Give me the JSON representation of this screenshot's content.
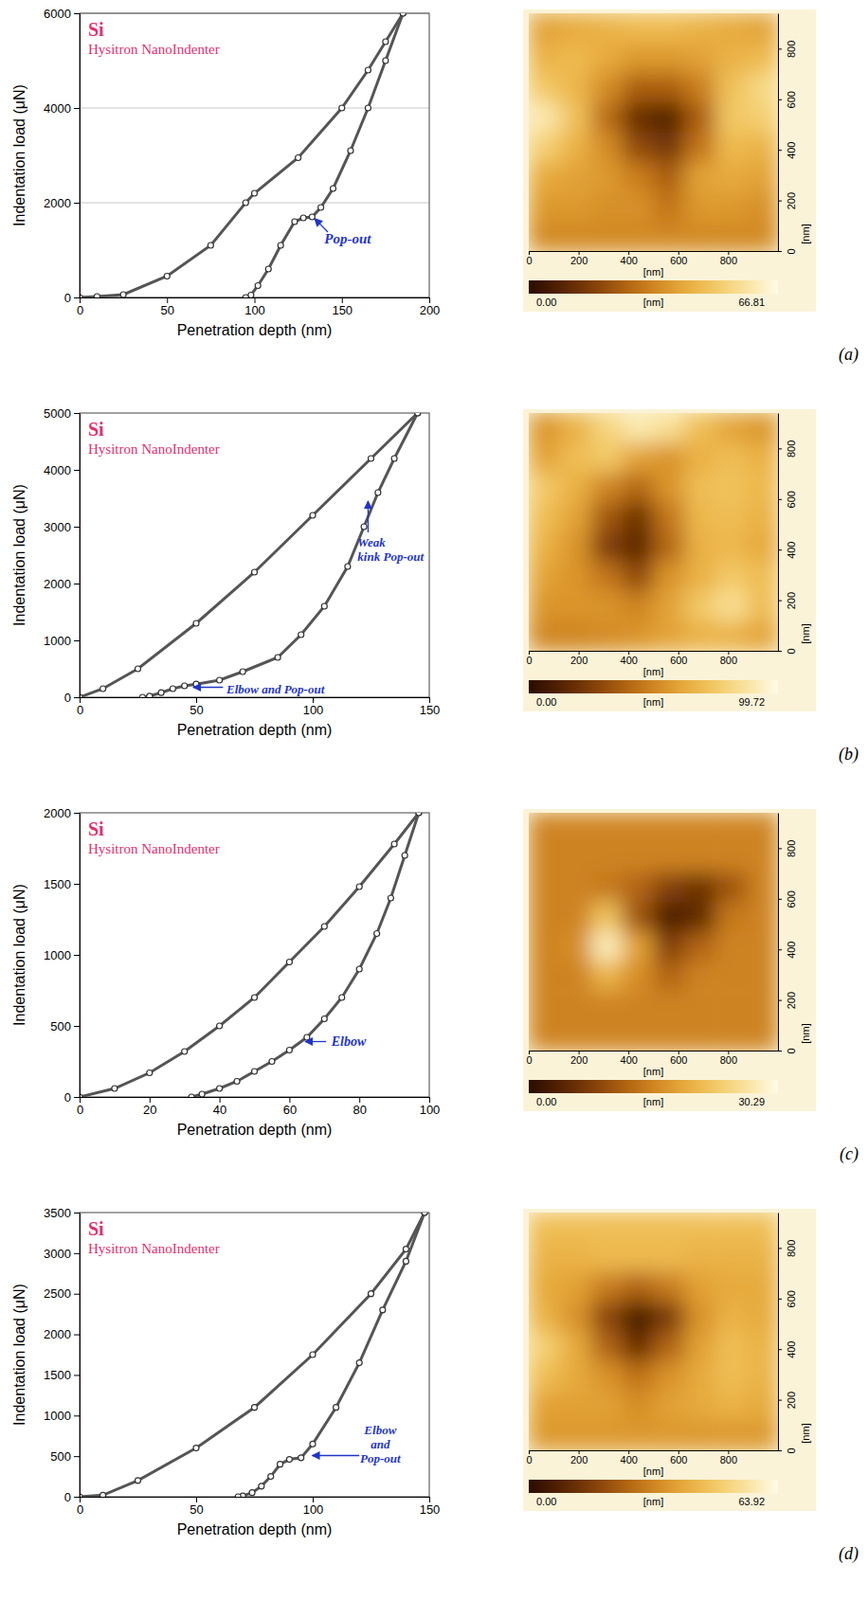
{
  "chart_data": [
    {
      "type": "scatter",
      "title": "Si",
      "subtitle": "Hysitron NanoIndenter",
      "x_label": "Penetration depth (nm)",
      "y_label": "Indentation load (μN)",
      "xlim": [
        0,
        200
      ],
      "xticks": [
        0,
        50,
        100,
        150,
        200
      ],
      "ylim": [
        0,
        6000
      ],
      "yticks": [
        0,
        2000,
        4000,
        6000
      ],
      "grid": true,
      "series": [
        {
          "x": [
            0,
            10,
            25,
            50,
            75,
            95,
            100,
            125,
            150,
            165,
            175,
            185
          ],
          "values": [
            0,
            20,
            60,
            450,
            1100,
            2000,
            2200,
            2950,
            4000,
            4800,
            5400,
            6000
          ],
          "marker": "circle",
          "line_style": "solid"
        },
        {
          "x": [
            185,
            175,
            165,
            155,
            145,
            138,
            133,
            128,
            123,
            115,
            108,
            102,
            98,
            95
          ],
          "values": [
            6000,
            5000,
            4000,
            3100,
            2300,
            1900,
            1700,
            1680,
            1600,
            1100,
            600,
            250,
            50,
            0
          ],
          "marker": "circle",
          "line_style": "solid"
        }
      ],
      "annotations": [
        {
          "text": [
            "Pop-out"
          ]
        }
      ],
      "panel_label": "(a)"
    },
    {
      "type": "heatmap",
      "x_label": "[nm]",
      "y_label": "[nm]",
      "xlim": [
        0,
        1000
      ],
      "xticks": [
        0,
        200,
        400,
        600,
        800
      ],
      "ylim": [
        0,
        940
      ],
      "yticks": [
        0,
        200,
        400,
        600,
        800
      ],
      "cells": [
        [
          40,
          42,
          44,
          46,
          46,
          44,
          42,
          40
        ],
        [
          44,
          46,
          42,
          38,
          38,
          40,
          44,
          46
        ],
        [
          50,
          45,
          35,
          25,
          25,
          32,
          48,
          55
        ],
        [
          60,
          48,
          28,
          12,
          8,
          25,
          50,
          52
        ],
        [
          52,
          44,
          35,
          20,
          15,
          30,
          46,
          44
        ],
        [
          42,
          40,
          38,
          32,
          25,
          40,
          42,
          40
        ],
        [
          38,
          38,
          36,
          36,
          30,
          38,
          38,
          36
        ],
        [
          34,
          34,
          34,
          34,
          34,
          34,
          34,
          34
        ]
      ],
      "colorbar": {
        "label": "[nm]",
        "range": [
          0,
          66.81
        ],
        "ticks": [
          {
            "value": 0,
            "label": "0.00"
          },
          66.81
        ]
      }
    },
    {
      "type": "scatter",
      "title": "Si",
      "subtitle": "Hysitron NanoIndenter",
      "x_label": "Penetration depth (nm)",
      "y_label": "Indentation load (μN)",
      "xlim": [
        0,
        150
      ],
      "xticks": [
        0,
        50,
        100,
        150
      ],
      "ylim": [
        0,
        5000
      ],
      "yticks": [
        0,
        1000,
        2000,
        3000,
        4000,
        5000
      ],
      "grid": false,
      "series": [
        {
          "x": [
            0,
            10,
            25,
            50,
            75,
            100,
            125,
            145
          ],
          "values": [
            0,
            150,
            500,
            1300,
            2200,
            3200,
            4200,
            5000
          ],
          "marker": "circle",
          "line_style": "solid"
        },
        {
          "x": [
            145,
            135,
            128,
            122,
            115,
            105,
            95,
            85,
            70,
            60,
            50,
            45,
            40,
            35,
            30,
            27
          ],
          "values": [
            5000,
            4200,
            3600,
            3000,
            2300,
            1600,
            1100,
            700,
            450,
            300,
            230,
            200,
            150,
            80,
            20,
            0
          ],
          "marker": "circle",
          "line_style": "solid"
        }
      ],
      "annotations": [
        {
          "text": [
            "Weak",
            "kink Pop-out"
          ]
        },
        {
          "text": [
            "Elbow and Pop-out"
          ]
        }
      ],
      "panel_label": "(b)"
    },
    {
      "type": "heatmap",
      "x_label": "[nm]",
      "y_label": "[nm]",
      "xlim": [
        0,
        1000
      ],
      "xticks": [
        0,
        200,
        400,
        600,
        800
      ],
      "ylim": [
        0,
        940
      ],
      "yticks": [
        0,
        200,
        400,
        600,
        800
      ],
      "cells": [
        [
          55,
          65,
          80,
          90,
          85,
          70,
          60,
          55
        ],
        [
          60,
          70,
          75,
          60,
          55,
          65,
          70,
          65
        ],
        [
          75,
          65,
          50,
          40,
          55,
          70,
          72,
          68
        ],
        [
          70,
          60,
          35,
          20,
          45,
          68,
          70,
          65
        ],
        [
          65,
          55,
          25,
          15,
          40,
          65,
          68,
          62
        ],
        [
          60,
          55,
          45,
          30,
          55,
          65,
          75,
          70
        ],
        [
          55,
          55,
          55,
          50,
          60,
          75,
          85,
          70
        ],
        [
          50,
          50,
          52,
          55,
          60,
          65,
          65,
          60
        ]
      ],
      "colorbar": {
        "label": "[nm]",
        "range": [
          0,
          99.72
        ],
        "ticks": [
          {
            "value": 0,
            "label": "0.00"
          },
          99.72
        ]
      }
    },
    {
      "type": "scatter",
      "title": "Si",
      "subtitle": "Hysitron NanoIndenter",
      "x_label": "Penetration depth (nm)",
      "y_label": "Indentation load (μN)",
      "xlim": [
        0,
        100
      ],
      "xticks": [
        0,
        20,
        40,
        60,
        80,
        100
      ],
      "ylim": [
        0,
        2000
      ],
      "yticks": [
        0,
        500,
        1000,
        1500,
        2000
      ],
      "grid": false,
      "series": [
        {
          "x": [
            0,
            10,
            20,
            30,
            40,
            50,
            60,
            70,
            80,
            90,
            97
          ],
          "values": [
            0,
            60,
            170,
            320,
            500,
            700,
            950,
            1200,
            1480,
            1780,
            2000
          ],
          "marker": "circle",
          "line_style": "solid"
        },
        {
          "x": [
            97,
            93,
            89,
            85,
            80,
            75,
            70,
            65,
            60,
            55,
            50,
            45,
            40,
            35,
            32
          ],
          "values": [
            2000,
            1700,
            1400,
            1150,
            900,
            700,
            550,
            420,
            330,
            250,
            180,
            110,
            60,
            20,
            0
          ],
          "marker": "circle",
          "line_style": "solid"
        }
      ],
      "annotations": [
        {
          "text": [
            "Elbow"
          ]
        }
      ],
      "panel_label": "(c)"
    },
    {
      "type": "heatmap",
      "x_label": "[nm]",
      "y_label": "[nm]",
      "xlim": [
        0,
        1000
      ],
      "xticks": [
        0,
        200,
        400,
        600,
        800
      ],
      "ylim": [
        0,
        940
      ],
      "yticks": [
        0,
        200,
        400,
        600,
        800
      ],
      "cells": [
        [
          15,
          15,
          15,
          15,
          15,
          15,
          15,
          15
        ],
        [
          15,
          15,
          15,
          15,
          15,
          15,
          15,
          15
        ],
        [
          15,
          15,
          14,
          12,
          8,
          6,
          10,
          15
        ],
        [
          15,
          15,
          22,
          10,
          3,
          5,
          14,
          15
        ],
        [
          15,
          16,
          28,
          18,
          8,
          12,
          15,
          15
        ],
        [
          15,
          15,
          20,
          16,
          12,
          15,
          15,
          15
        ],
        [
          15,
          15,
          15,
          15,
          15,
          15,
          15,
          15
        ],
        [
          15,
          15,
          15,
          15,
          15,
          15,
          15,
          15
        ]
      ],
      "colorbar": {
        "label": "[nm]",
        "range": [
          0,
          30.29
        ],
        "ticks": [
          {
            "value": 0,
            "label": "0.00"
          },
          30.29
        ]
      }
    },
    {
      "type": "scatter",
      "title": "Si",
      "subtitle": "Hysitron NanoIndenter",
      "x_label": "Penetration depth (nm)",
      "y_label": "Indentation load (μN)",
      "xlim": [
        0,
        150
      ],
      "xticks": [
        0,
        50,
        100,
        150
      ],
      "ylim": [
        0,
        3500
      ],
      "yticks": [
        0,
        500,
        1000,
        1500,
        2000,
        2500,
        3000,
        3500
      ],
      "grid": false,
      "series": [
        {
          "x": [
            0,
            10,
            25,
            50,
            75,
            100,
            125,
            140,
            148
          ],
          "values": [
            0,
            20,
            200,
            600,
            1100,
            1750,
            2500,
            3050,
            3500
          ],
          "marker": "circle",
          "line_style": "solid"
        },
        {
          "x": [
            148,
            140,
            130,
            120,
            110,
            100,
            95,
            90,
            86,
            82,
            78,
            74,
            70,
            68
          ],
          "values": [
            3500,
            2900,
            2300,
            1650,
            1100,
            650,
            480,
            460,
            400,
            250,
            130,
            50,
            10,
            0
          ],
          "marker": "circle",
          "line_style": "solid"
        }
      ],
      "annotations": [
        {
          "text": [
            "Elbow",
            "and",
            "Pop-out"
          ]
        }
      ],
      "panel_label": "(d)"
    },
    {
      "type": "heatmap",
      "x_label": "[nm]",
      "y_label": "[nm]",
      "xlim": [
        0,
        1000
      ],
      "xticks": [
        0,
        200,
        400,
        600,
        800
      ],
      "ylim": [
        0,
        940
      ],
      "yticks": [
        0,
        200,
        400,
        600,
        800
      ],
      "cells": [
        [
          45,
          45,
          45,
          45,
          45,
          45,
          45,
          45
        ],
        [
          42,
          42,
          44,
          44,
          44,
          42,
          42,
          42
        ],
        [
          40,
          38,
          30,
          25,
          30,
          38,
          40,
          40
        ],
        [
          42,
          35,
          18,
          5,
          15,
          35,
          42,
          40
        ],
        [
          50,
          40,
          25,
          12,
          25,
          38,
          45,
          42
        ],
        [
          45,
          40,
          35,
          28,
          35,
          40,
          45,
          42
        ],
        [
          38,
          38,
          38,
          34,
          38,
          40,
          42,
          40
        ],
        [
          36,
          36,
          36,
          36,
          36,
          36,
          36,
          36
        ]
      ],
      "colorbar": {
        "label": "[nm]",
        "range": [
          0,
          63.92
        ],
        "ticks": [
          {
            "value": 0,
            "label": "0.00"
          },
          63.92
        ]
      }
    }
  ]
}
